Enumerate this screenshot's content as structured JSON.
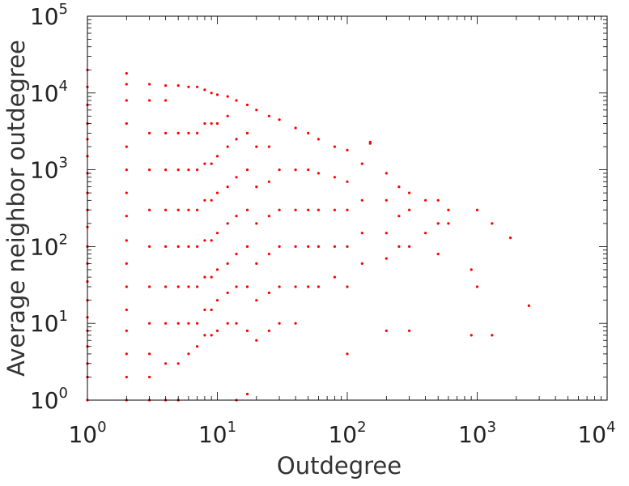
{
  "chart_data": {
    "type": "scatter",
    "title": "",
    "xlabel": "Outdegree",
    "ylabel": "Average neighbor outdegree",
    "xscale": "log",
    "yscale": "log",
    "xlim": [
      1,
      10000
    ],
    "ylim": [
      1,
      100000
    ],
    "grid": false,
    "legend": "none",
    "marker_color": "#ff0000",
    "x_ticks": [
      {
        "base": "10",
        "exp": "0"
      },
      {
        "base": "10",
        "exp": "1"
      },
      {
        "base": "10",
        "exp": "2"
      },
      {
        "base": "10",
        "exp": "3"
      },
      {
        "base": "10",
        "exp": "4"
      }
    ],
    "y_ticks": [
      {
        "base": "10",
        "exp": "0"
      },
      {
        "base": "10",
        "exp": "1"
      },
      {
        "base": "10",
        "exp": "2"
      },
      {
        "base": "10",
        "exp": "3"
      },
      {
        "base": "10",
        "exp": "4"
      },
      {
        "base": "10",
        "exp": "5"
      }
    ],
    "series": [
      {
        "points": [
          [
            1,
            1
          ],
          [
            1,
            2
          ],
          [
            1,
            3
          ],
          [
            1,
            5
          ],
          [
            1,
            8
          ],
          [
            1,
            12
          ],
          [
            1,
            20
          ],
          [
            1,
            35
          ],
          [
            1,
            60
          ],
          [
            1,
            100
          ],
          [
            1,
            180
          ],
          [
            1,
            300
          ],
          [
            1,
            500
          ],
          [
            1,
            900
          ],
          [
            1,
            1500
          ],
          [
            1,
            2500
          ],
          [
            1,
            4000
          ],
          [
            1,
            7000
          ],
          [
            1,
            12000
          ],
          [
            1,
            20000
          ],
          [
            2,
            1
          ],
          [
            2,
            2
          ],
          [
            2,
            4
          ],
          [
            2,
            8
          ],
          [
            2,
            15
          ],
          [
            2,
            30
          ],
          [
            2,
            60
          ],
          [
            2,
            120
          ],
          [
            2,
            250
          ],
          [
            2,
            500
          ],
          [
            2,
            1000
          ],
          [
            2,
            2000
          ],
          [
            2,
            4000
          ],
          [
            2,
            8000
          ],
          [
            2,
            13000
          ],
          [
            2,
            18000
          ],
          [
            3,
            1
          ],
          [
            3,
            2
          ],
          [
            3,
            4
          ],
          [
            3,
            10
          ],
          [
            3,
            30
          ],
          [
            3,
            100
          ],
          [
            3,
            300
          ],
          [
            3,
            1000
          ],
          [
            3,
            3000
          ],
          [
            3,
            8000
          ],
          [
            3,
            13000
          ],
          [
            4,
            1
          ],
          [
            4,
            3
          ],
          [
            4,
            10
          ],
          [
            4,
            30
          ],
          [
            4,
            100
          ],
          [
            4,
            300
          ],
          [
            4,
            1000
          ],
          [
            4,
            3000
          ],
          [
            4,
            8000
          ],
          [
            4,
            12500
          ],
          [
            5,
            1
          ],
          [
            5,
            3
          ],
          [
            5,
            10
          ],
          [
            5,
            30
          ],
          [
            5,
            100
          ],
          [
            5,
            300
          ],
          [
            5,
            1000
          ],
          [
            5,
            3000
          ],
          [
            5,
            12500
          ],
          [
            6,
            4
          ],
          [
            6,
            10
          ],
          [
            6,
            30
          ],
          [
            6,
            100
          ],
          [
            6,
            300
          ],
          [
            6,
            1000
          ],
          [
            6,
            3000
          ],
          [
            6,
            12000
          ],
          [
            7,
            5
          ],
          [
            7,
            10
          ],
          [
            7,
            30
          ],
          [
            7,
            100
          ],
          [
            7,
            300
          ],
          [
            7,
            1000
          ],
          [
            7,
            3000
          ],
          [
            7,
            12000
          ],
          [
            8,
            7
          ],
          [
            8,
            15
          ],
          [
            8,
            40
          ],
          [
            8,
            120
          ],
          [
            8,
            400
          ],
          [
            8,
            1200
          ],
          [
            8,
            4000
          ],
          [
            8,
            11000
          ],
          [
            9,
            7
          ],
          [
            9,
            15
          ],
          [
            9,
            40
          ],
          [
            9,
            120
          ],
          [
            9,
            400
          ],
          [
            9,
            1200
          ],
          [
            9,
            4000
          ],
          [
            9,
            10000
          ],
          [
            10,
            8
          ],
          [
            10,
            20
          ],
          [
            10,
            50
          ],
          [
            10,
            150
          ],
          [
            10,
            500
          ],
          [
            10,
            1500
          ],
          [
            10,
            4000
          ],
          [
            10,
            9500
          ],
          [
            12,
            10
          ],
          [
            12,
            25
          ],
          [
            12,
            60
          ],
          [
            12,
            200
          ],
          [
            12,
            600
          ],
          [
            12,
            2000
          ],
          [
            12,
            5000
          ],
          [
            12,
            9000
          ],
          [
            14,
            1
          ],
          [
            14,
            10
          ],
          [
            14,
            30
          ],
          [
            14,
            80
          ],
          [
            14,
            250
          ],
          [
            14,
            800
          ],
          [
            14,
            2500
          ],
          [
            14,
            8000
          ],
          [
            17,
            1.2
          ],
          [
            17,
            8
          ],
          [
            17,
            30
          ],
          [
            17,
            100
          ],
          [
            17,
            300
          ],
          [
            17,
            1000
          ],
          [
            17,
            3000
          ],
          [
            17,
            7000
          ],
          [
            20,
            6
          ],
          [
            20,
            20
          ],
          [
            20,
            60
          ],
          [
            20,
            200
          ],
          [
            20,
            600
          ],
          [
            20,
            2000
          ],
          [
            20,
            6000
          ],
          [
            25,
            8
          ],
          [
            25,
            25
          ],
          [
            25,
            80
          ],
          [
            25,
            250
          ],
          [
            25,
            700
          ],
          [
            25,
            2000
          ],
          [
            25,
            5000
          ],
          [
            30,
            10
          ],
          [
            30,
            30
          ],
          [
            30,
            100
          ],
          [
            30,
            300
          ],
          [
            30,
            1000
          ],
          [
            30,
            4500
          ],
          [
            40,
            10
          ],
          [
            40,
            30
          ],
          [
            40,
            100
          ],
          [
            40,
            300
          ],
          [
            40,
            1000
          ],
          [
            40,
            3500
          ],
          [
            50,
            30
          ],
          [
            50,
            100
          ],
          [
            50,
            300
          ],
          [
            50,
            1000
          ],
          [
            50,
            3000
          ],
          [
            60,
            30
          ],
          [
            60,
            100
          ],
          [
            60,
            300
          ],
          [
            60,
            900
          ],
          [
            60,
            2500
          ],
          [
            80,
            40
          ],
          [
            80,
            100
          ],
          [
            80,
            300
          ],
          [
            80,
            800
          ],
          [
            80,
            2000
          ],
          [
            100,
            4
          ],
          [
            100,
            30
          ],
          [
            100,
            100
          ],
          [
            100,
            300
          ],
          [
            100,
            700
          ],
          [
            100,
            1800
          ],
          [
            130,
            60
          ],
          [
            130,
            150
          ],
          [
            130,
            400
          ],
          [
            130,
            1200
          ],
          [
            150,
            2300
          ],
          [
            150,
            2200
          ],
          [
            200,
            8
          ],
          [
            200,
            70
          ],
          [
            200,
            150
          ],
          [
            200,
            400
          ],
          [
            200,
            900
          ],
          [
            250,
            100
          ],
          [
            250,
            250
          ],
          [
            250,
            600
          ],
          [
            300,
            8
          ],
          [
            300,
            100
          ],
          [
            300,
            300
          ],
          [
            300,
            500
          ],
          [
            400,
            150
          ],
          [
            400,
            400
          ],
          [
            500,
            80
          ],
          [
            500,
            200
          ],
          [
            500,
            400
          ],
          [
            600,
            200
          ],
          [
            600,
            300
          ],
          [
            900,
            7
          ],
          [
            900,
            50
          ],
          [
            1000,
            300
          ],
          [
            1000,
            30
          ],
          [
            1300,
            7
          ],
          [
            1300,
            200
          ],
          [
            1800,
            130
          ],
          [
            2500,
            17
          ]
        ]
      }
    ]
  }
}
